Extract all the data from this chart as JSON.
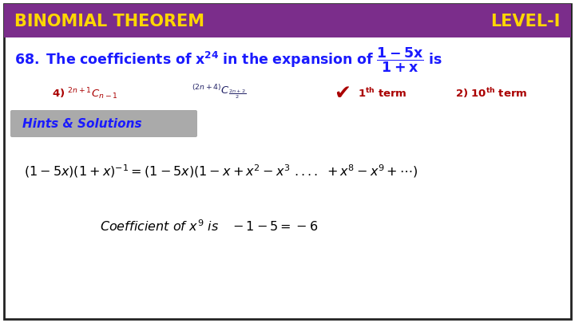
{
  "title_left": "BINOMIAL THEOREM",
  "title_right": "LEVEL-I",
  "header_bg": "#7B2D8B",
  "header_text_color": "#FFD700",
  "bg_color": "#FFFFFF",
  "border_color": "#222222",
  "question_color": "#1a1aff",
  "option_color_red": "#AA0000",
  "hints_bg": "#AAAAAA",
  "hints_text": "Hints & Solutions",
  "hints_text_color": "#1a1aff",
  "solution_color": "#000000",
  "figsize": [
    7.2,
    4.05
  ],
  "dpi": 100
}
